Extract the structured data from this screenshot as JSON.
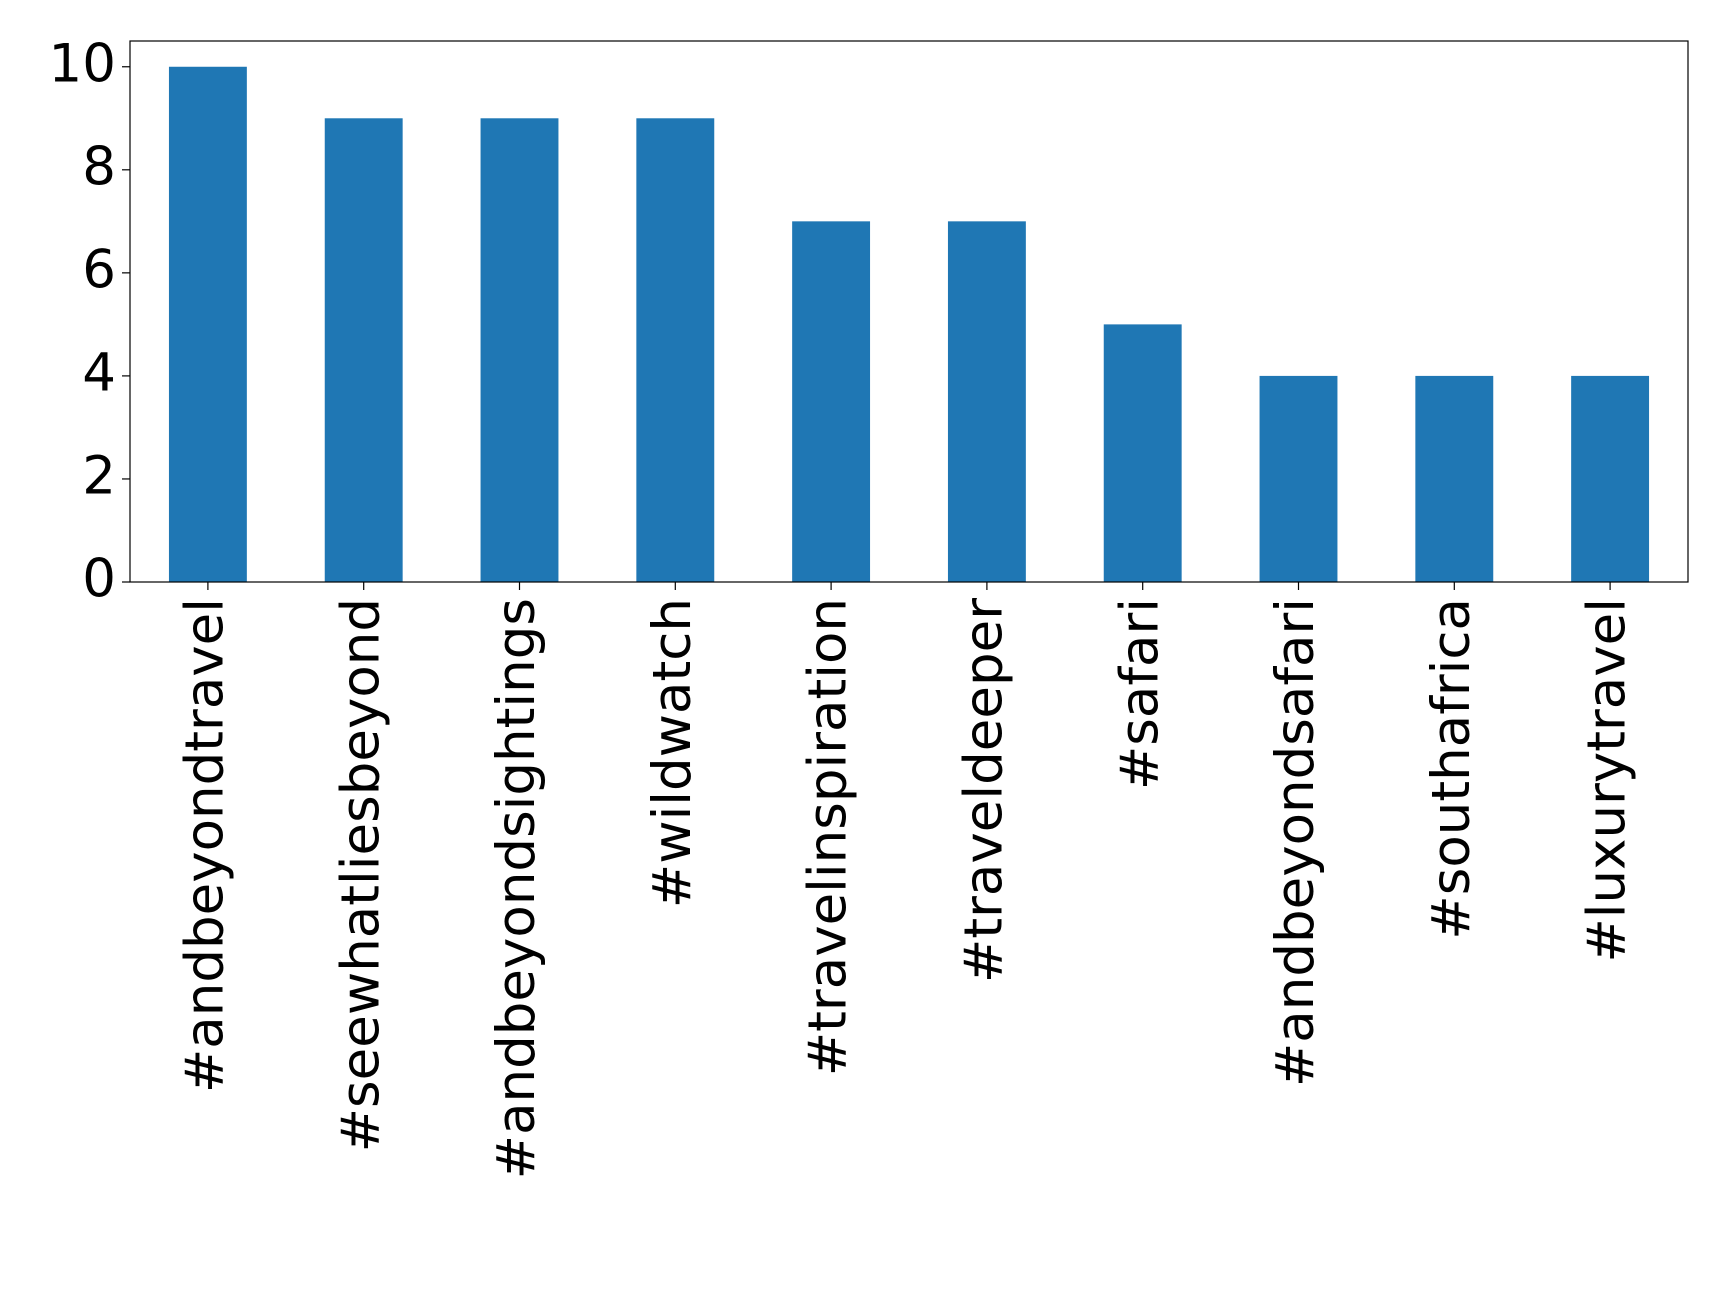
{
  "chart_data": {
    "type": "bar",
    "categories": [
      "#andbeyondtravel",
      "#seewhatliesbeyond",
      "#andbeyondsightings",
      "#wildwatch",
      "#travelinspiration",
      "#traveldeeper",
      "#safari",
      "#andbeyondsafari",
      "#southafrica",
      "#luxurytravel"
    ],
    "values": [
      10,
      9,
      9,
      9,
      7,
      7,
      5,
      4,
      4,
      4
    ],
    "color": "#1f77b4",
    "ylim": [
      0,
      10.5
    ],
    "yticks": [
      0,
      2,
      4,
      6,
      8,
      10
    ],
    "grid": false
  }
}
